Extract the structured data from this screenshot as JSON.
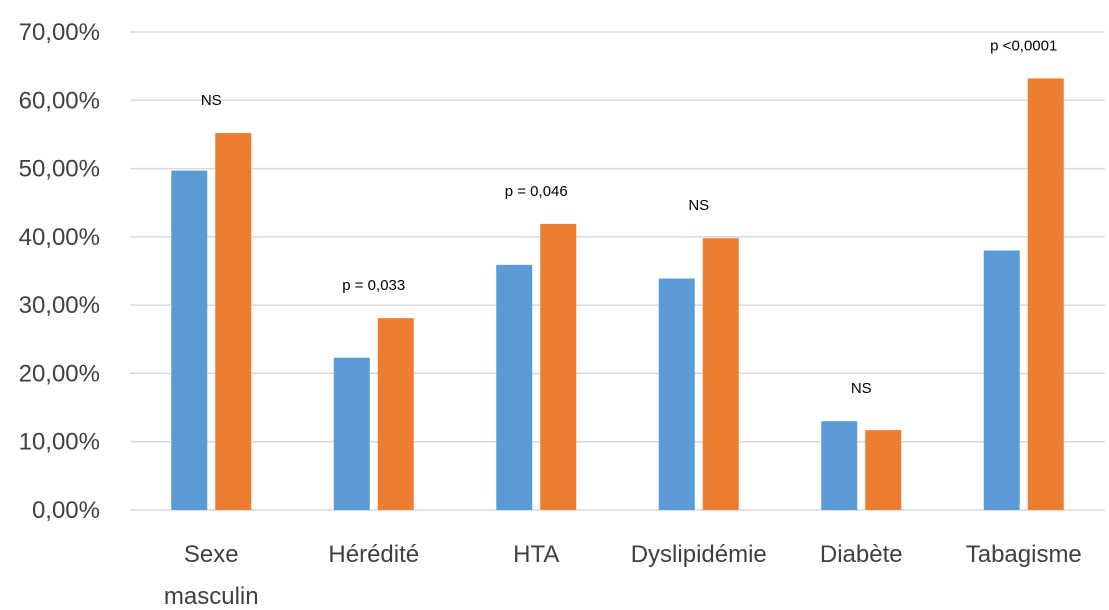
{
  "chart_data": {
    "type": "bar",
    "categories": [
      [
        "Sexe",
        "masculin"
      ],
      [
        "Hérédité"
      ],
      [
        "HTA"
      ],
      [
        "Dyslipidémie"
      ],
      [
        "Diabète"
      ],
      [
        "Tabagisme"
      ]
    ],
    "series": [
      {
        "values": [
          49.7,
          22.3,
          35.9,
          33.9,
          13.0,
          38.0
        ],
        "color": "#5b9bd5"
      },
      {
        "values": [
          55.2,
          28.1,
          41.9,
          39.8,
          11.7,
          63.2
        ],
        "color": "#ed7d31"
      }
    ],
    "annotations": [
      "NS",
      "p = 0,033",
      "p = 0,046",
      "NS",
      "NS",
      "p <0,0001"
    ],
    "yticks": [
      "0,00%",
      "10,00%",
      "20,00%",
      "30,00%",
      "40,00%",
      "50,00%",
      "60,00%",
      "70,00%"
    ],
    "ylim": [
      0,
      70
    ],
    "grid": true,
    "legend": "none"
  }
}
